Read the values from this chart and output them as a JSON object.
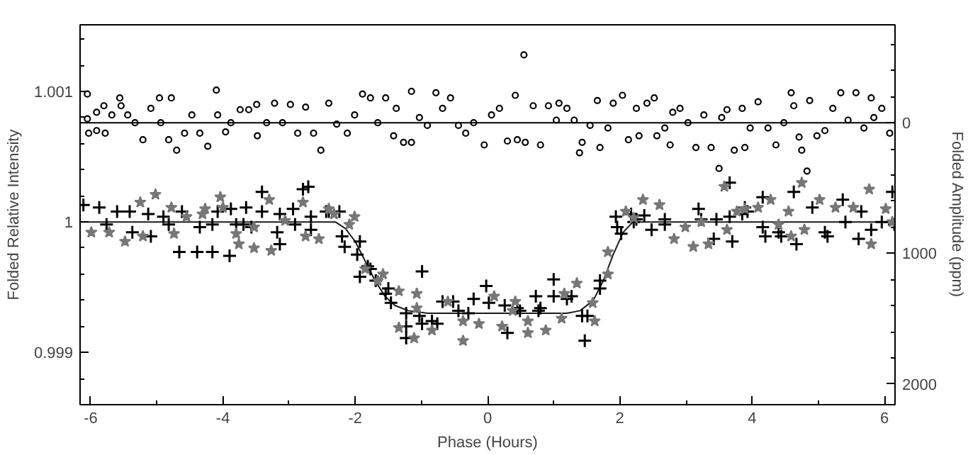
{
  "chart_data": {
    "type": "scatter",
    "xlabel": "Phase (Hours)",
    "ylabel": "Folded Relative Intensity",
    "y2label": "Folded Amplitude (ppm)",
    "xlim": [
      -6.16,
      6.16
    ],
    "xticks": [
      -6,
      {
        "value": -5,
        "label": null
      },
      -4,
      {
        "value": -3,
        "label": null
      },
      -2,
      {
        "value": -1,
        "label": null
      },
      0,
      {
        "value": 1,
        "label": null
      },
      2,
      {
        "value": 3,
        "label": null
      },
      4,
      {
        "value": 5,
        "label": null
      },
      6
    ],
    "ylim": [
      0.9986,
      1.00151
    ],
    "yticks": [
      {
        "value": 0.9986,
        "label": null
      },
      {
        "value": 0.9988,
        "label": null
      },
      0.999,
      {
        "value": 0.9992,
        "label": null
      },
      {
        "value": 0.9994,
        "label": null
      },
      {
        "value": 0.9996,
        "label": null
      },
      {
        "value": 0.9998,
        "label": null
      },
      1,
      {
        "value": 1.0002,
        "label": null
      },
      {
        "value": 1.0004,
        "label": null
      },
      {
        "value": 1.0006,
        "label": null
      },
      {
        "value": 1.0008,
        "label": null
      },
      1.001,
      {
        "value": 1.0012,
        "label": null
      },
      {
        "value": 1.0014,
        "label": null
      }
    ],
    "y2lim": [
      2159,
      -750
    ],
    "y2ticks": [
      {
        "value": -600,
        "label": null
      },
      {
        "value": -400,
        "label": null
      },
      {
        "value": -200,
        "label": null
      },
      0,
      {
        "value": 200,
        "label": null
      },
      {
        "value": 400,
        "label": null
      },
      {
        "value": 600,
        "label": null
      },
      {
        "value": 800,
        "label": null
      },
      1000,
      {
        "value": 1200,
        "label": null
      },
      {
        "value": 1400,
        "label": null
      },
      {
        "value": 1600,
        "label": null
      },
      {
        "value": 1800,
        "label": null
      },
      2000
    ],
    "grid": false,
    "series": [
      {
        "marker": "circle",
        "axis": "y2",
        "color": "#000000",
        "x": [
          -6.05,
          -6.05,
          -6.03,
          -5.91,
          -5.91,
          -5.8,
          -5.78,
          -5.68,
          -5.56,
          -5.54,
          -5.44,
          -5.33,
          -5.21,
          -5.09,
          -4.96,
          -4.94,
          -4.82,
          -4.78,
          -4.7,
          -4.58,
          -4.47,
          -4.35,
          -4.23,
          -4.1,
          -4.08,
          -3.96,
          -3.88,
          -3.74,
          -3.61,
          -3.49,
          -3.48,
          -3.34,
          -3.22,
          -3.1,
          -2.98,
          -2.87,
          -2.75,
          -2.63,
          -2.52,
          -2.4,
          -2.28,
          -2.12,
          -2.01,
          -1.89,
          -1.77,
          -1.66,
          -1.54,
          -1.42,
          -1.38,
          -1.27,
          -1.15,
          -1.15,
          -1.03,
          -0.91,
          -0.78,
          -0.68,
          -0.56,
          -0.44,
          -0.33,
          -0.21,
          -0.05,
          0.06,
          0.18,
          0.3,
          0.42,
          0.45,
          0.55,
          0.57,
          0.69,
          0.8,
          0.92,
          1.04,
          1.08,
          1.2,
          1.31,
          1.39,
          1.43,
          1.55,
          1.66,
          1.7,
          1.82,
          1.9,
          2.04,
          2.13,
          2.25,
          2.29,
          2.41,
          2.52,
          2.56,
          2.68,
          2.76,
          2.8,
          2.91,
          3.03,
          3.15,
          3.27,
          3.38,
          3.5,
          3.54,
          3.62,
          3.73,
          3.85,
          3.89,
          3.97,
          4.09,
          4.24,
          4.36,
          4.48,
          4.59,
          4.63,
          4.71,
          4.75,
          4.83,
          4.87,
          4.98,
          5.1,
          5.22,
          5.34,
          5.45,
          5.57,
          5.69,
          5.8,
          5.84,
          5.96,
          6.08
        ],
        "values": [
          -220,
          -30,
          80,
          -80,
          60,
          -130,
          80,
          -60,
          -190,
          -130,
          -60,
          0,
          130,
          -110,
          -190,
          0,
          130,
          -190,
          210,
          80,
          -60,
          80,
          180,
          -250,
          -60,
          70,
          0,
          -100,
          -100,
          -140,
          100,
          0,
          -150,
          0,
          -140,
          80,
          -120,
          80,
          210,
          -150,
          10,
          80,
          -60,
          -220,
          -190,
          0,
          -190,
          100,
          -110,
          150,
          -240,
          150,
          -40,
          20,
          -230,
          -110,
          -190,
          20,
          80,
          0,
          170,
          -60,
          -110,
          140,
          -210,
          130,
          -520,
          150,
          -130,
          170,
          -130,
          -20,
          -150,
          -110,
          -20,
          230,
          150,
          20,
          -170,
          190,
          40,
          -150,
          -210,
          130,
          -110,
          100,
          -150,
          -190,
          100,
          40,
          170,
          -80,
          -110,
          0,
          190,
          -60,
          190,
          350,
          -40,
          -100,
          210,
          -110,
          190,
          40,
          -160,
          40,
          170,
          0,
          -230,
          -130,
          110,
          210,
          370,
          -170,
          100,
          60,
          -110,
          -230,
          -20,
          -230,
          40,
          -190,
          -40,
          -110,
          80
        ]
      },
      {
        "type": "line",
        "marker": "none",
        "axis": "y2",
        "color": "#000000",
        "x": [
          -6.16,
          6.16
        ],
        "values": [
          0,
          0
        ]
      },
      {
        "marker": "cross",
        "color": "#000000",
        "x": [
          -6.11,
          -5.87,
          -5.76,
          -5.6,
          -5.41,
          -5.37,
          -5.13,
          -5.09,
          -4.9,
          -4.82,
          -4.66,
          -4.62,
          -4.39,
          -4.35,
          -4.16,
          -4.16,
          -4.08,
          -3.9,
          -3.88,
          -3.8,
          -3.69,
          -3.65,
          -3.57,
          -3.41,
          -3.41,
          -3.18,
          -3.14,
          -3.14,
          -2.94,
          -2.91,
          -2.79,
          -2.71,
          -2.67,
          -2.67,
          -2.44,
          -2.4,
          -2.24,
          -2.2,
          -2.16,
          -1.97,
          -1.93,
          -1.93,
          -1.81,
          -1.77,
          -1.69,
          -1.54,
          -1.5,
          -1.46,
          -1.23,
          -1.23,
          -1.23,
          -1.03,
          -0.99,
          -0.99,
          -0.84,
          -0.76,
          -0.68,
          -0.52,
          -0.44,
          -0.29,
          -0.21,
          -0.02,
          0.02,
          0.26,
          0.3,
          0.45,
          0.49,
          0.73,
          0.77,
          0.8,
          1.0,
          1.0,
          1.2,
          1.27,
          1.43,
          1.47,
          1.51,
          1.7,
          1.7,
          1.94,
          1.96,
          2.02,
          2.17,
          2.21,
          2.25,
          2.37,
          2.48,
          2.68,
          2.68,
          3.19,
          3.23,
          3.42,
          3.46,
          3.66,
          3.66,
          3.7,
          3.85,
          3.89,
          3.93,
          4.16,
          4.16,
          4.2,
          4.4,
          4.44,
          4.63,
          4.67,
          4.91,
          5.1,
          5.14,
          5.37,
          5.41,
          5.61,
          5.65,
          5.8,
          5.96,
          6.12,
          6.15
        ],
        "values": [
          1.00013,
          1.00011,
          0.99998,
          1.00008,
          1.00008,
          0.99992,
          1.00006,
          0.99989,
          1.00004,
          0.99998,
          0.99977,
          1.00008,
          0.99977,
          0.99996,
          0.99977,
          0.99998,
          1.00008,
          0.99974,
          1.0001,
          0.99998,
          0.99998,
          1.00011,
          0.99996,
          1.00023,
          1.00008,
          0.99992,
          0.99983,
          1.00006,
          1.0001,
          0.99998,
          1.00025,
          1.00027,
          0.99994,
          1.00004,
          1.00008,
          1.00008,
          1.00008,
          0.99989,
          0.99981,
          0.99975,
          0.99985,
          0.99958,
          0.99966,
          0.99964,
          0.99955,
          0.99945,
          0.99949,
          0.99938,
          0.9993,
          0.9992,
          0.99911,
          0.99928,
          0.99962,
          0.99922,
          0.99924,
          0.99922,
          0.99939,
          0.99939,
          0.99932,
          0.9993,
          0.99941,
          0.99951,
          0.99938,
          0.99936,
          0.99915,
          0.99934,
          0.99932,
          0.99943,
          0.99932,
          0.99934,
          0.99956,
          0.99943,
          0.99941,
          0.99943,
          0.99928,
          0.99909,
          0.99928,
          0.99955,
          0.99949,
          1.00004,
          0.99996,
          0.99991,
          1.00006,
          1.0,
          1.00002,
          1.00005,
          0.99994,
          1.00002,
          0.99998,
          1.0001,
          1.00002,
          0.99987,
          1.00002,
          1.0003,
          1.00004,
          0.99985,
          1.00006,
          1.00011,
          1.00008,
          1.00019,
          0.99996,
          0.99989,
          0.99992,
          0.99989,
          1.00023,
          0.99983,
          1.00011,
          0.99992,
          0.99989,
          1.00017,
          1.0,
          0.99987,
          1.00008,
          0.99994,
          1.0,
          1.00023,
          0.99998
        ]
      },
      {
        "marker": "star",
        "color": "#777777",
        "x": [
          -5.99,
          -5.72,
          -5.48,
          -5.25,
          -5.21,
          -5.02,
          -4.78,
          -4.74,
          -4.55,
          -4.31,
          -4.27,
          -4.04,
          -4.0,
          -3.8,
          -3.76,
          -3.53,
          -3.53,
          -3.3,
          -3.27,
          -3.06,
          -2.79,
          -2.75,
          -2.55,
          -2.4,
          -2.32,
          -2.09,
          -2.01,
          -1.85,
          -1.66,
          -1.58,
          -1.34,
          -1.34,
          -1.11,
          -1.07,
          -1.07,
          -0.84,
          -0.6,
          -0.37,
          -0.37,
          -0.13,
          0.1,
          0.22,
          0.38,
          0.42,
          0.61,
          0.61,
          0.88,
          1.12,
          1.16,
          1.35,
          1.59,
          1.62,
          1.82,
          1.82,
          2.09,
          2.21,
          2.35,
          2.6,
          2.82,
          2.99,
          3.11,
          3.23,
          3.34,
          3.58,
          3.62,
          3.77,
          3.89,
          4.09,
          4.28,
          4.4,
          4.55,
          4.59,
          4.75,
          4.79,
          5.02,
          5.26,
          5.53,
          5.77,
          5.8,
          6.02,
          6.12
        ],
        "values": [
          0.99992,
          0.99992,
          0.99985,
          1.00015,
          0.99989,
          1.00021,
          1.00011,
          0.99991,
          1.00004,
          1.00006,
          1.0001,
          1.00019,
          1.00011,
          0.99991,
          0.99983,
          0.99996,
          0.9998,
          1.00017,
          0.99978,
          1.00001,
          1.00015,
          0.99989,
          0.99987,
          1.0001,
          1.00006,
          0.99998,
          1.00004,
          0.99964,
          0.99955,
          0.9996,
          0.99947,
          0.99919,
          0.99911,
          0.99945,
          0.99934,
          0.99917,
          0.99939,
          0.99924,
          0.99909,
          0.99922,
          0.99943,
          0.9992,
          0.99932,
          0.99939,
          0.99924,
          0.99915,
          0.99917,
          0.99926,
          0.99945,
          0.99953,
          0.99938,
          0.99924,
          0.99977,
          0.9996,
          1.00008,
          1.00003,
          1.00017,
          1.00013,
          0.99987,
          0.99996,
          0.99981,
          1.0,
          0.99983,
          1.00027,
          0.99994,
          1.00008,
          1.0001,
          1.00011,
          1.00017,
          0.99998,
          1.00008,
          0.99989,
          1.0003,
          0.99994,
          1.00017,
          1.00011,
          1.00011,
          1.00025,
          0.99983,
          1.0001,
          1.0
        ]
      },
      {
        "type": "line",
        "marker": "none",
        "color": "#1a1a1a",
        "x": [
          -6.16,
          -2.3,
          -2.15,
          -2.0,
          -1.85,
          -1.7,
          -1.55,
          -1.4,
          -1.2,
          -0.9,
          1.2,
          1.4,
          1.6,
          1.75,
          1.9,
          2.05,
          2.2,
          6.16
        ],
        "values": [
          1.0,
          1.0,
          0.99995,
          0.99985,
          0.9997,
          0.99955,
          0.99943,
          0.99936,
          0.99932,
          0.9993,
          0.9993,
          0.99932,
          0.9994,
          0.99955,
          0.99975,
          0.99992,
          1.0,
          1.0
        ]
      }
    ]
  }
}
